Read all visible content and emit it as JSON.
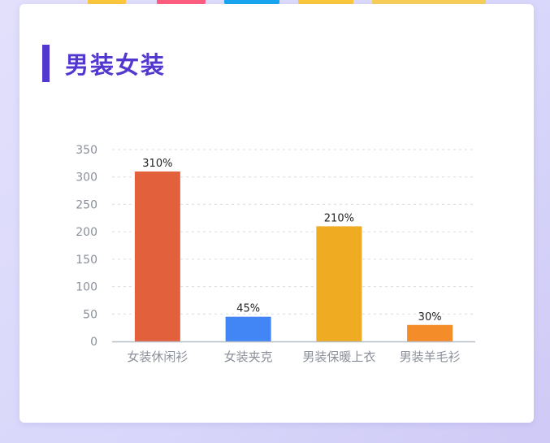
{
  "header": {
    "title": "男装女装"
  },
  "colors": {
    "accent": "#5338d0",
    "bars": [
      "#e2603c",
      "#4286f5",
      "#efab22",
      "#f58c2a"
    ]
  },
  "chart_data": {
    "type": "bar",
    "title": "",
    "xlabel": "",
    "ylabel": "",
    "categories": [
      "女装休闲衫",
      "女装夹克",
      "男装保暖上衣",
      "男装羊毛衫"
    ],
    "values": [
      310,
      45,
      210,
      30
    ],
    "data_labels": [
      "310%",
      "45%",
      "210%",
      "30%"
    ],
    "ylim": [
      0,
      350
    ],
    "yticks": [
      0,
      50,
      100,
      150,
      200,
      250,
      300,
      350
    ],
    "grid": true,
    "legend": "none"
  }
}
